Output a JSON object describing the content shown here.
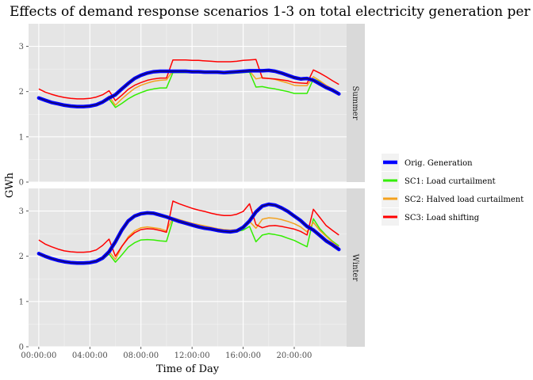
{
  "chart_data": {
    "type": "line",
    "title": "Effects of demand response scenarios 1-3 on total electricity generation per day",
    "xlabel": "Time of Day",
    "ylabel": "GWh",
    "ylim": [
      0,
      3.5
    ],
    "yticks": [
      0,
      1,
      2,
      3
    ],
    "xticks": [
      {
        "hour": 0,
        "label": "00:00:00"
      },
      {
        "hour": 4,
        "label": "04:00:00"
      },
      {
        "hour": 8,
        "label": "08:00:00"
      },
      {
        "hour": 12,
        "label": "12:00:00"
      },
      {
        "hour": 16,
        "label": "16:00:00"
      },
      {
        "hour": 20,
        "label": "20:00:00"
      }
    ],
    "xlim_hours": [
      -0.8,
      24.1
    ],
    "grid": true,
    "legend_position": "right",
    "colors": {
      "orig": "#0000ff",
      "sc1": "#33ee00",
      "sc2": "#f4a11e",
      "sc3": "#ff0000",
      "panel_bg": "#e5e5e5",
      "strip_bg": "#d9d9d9",
      "grid": "#ffffff"
    },
    "legend": [
      {
        "key": "orig",
        "label": "Orig. Generation"
      },
      {
        "key": "sc1",
        "label": "SC1: Load curtailment"
      },
      {
        "key": "sc2",
        "label": "SC2: Halved load curtailment"
      },
      {
        "key": "sc3",
        "label": "SC3: Load shifting"
      }
    ],
    "x_hours": [
      0,
      0.5,
      1,
      1.5,
      2,
      2.5,
      3,
      3.5,
      4,
      4.5,
      5,
      5.5,
      6,
      6.5,
      7,
      7.5,
      8,
      8.5,
      9,
      9.5,
      10,
      10.5,
      11,
      11.5,
      12,
      12.5,
      13,
      13.5,
      14,
      14.5,
      15,
      15.5,
      16,
      16.5,
      17,
      17.5,
      18,
      18.5,
      19,
      19.5,
      20,
      20.5,
      21,
      21.5,
      22,
      22.5,
      23,
      23.5
    ],
    "panels": [
      {
        "name": "Summer",
        "series": [
          {
            "key": "sc1",
            "values": [
              1.84,
              1.79,
              1.74,
              1.71,
              1.68,
              1.66,
              1.65,
              1.65,
              1.66,
              1.69,
              1.75,
              1.84,
              1.65,
              1.74,
              1.84,
              1.92,
              1.98,
              2.03,
              2.06,
              2.08,
              2.08,
              2.42,
              2.42,
              2.42,
              2.42,
              2.42,
              2.41,
              2.41,
              2.41,
              2.4,
              2.4,
              2.41,
              2.42,
              2.43,
              2.1,
              2.11,
              2.08,
              2.06,
              2.03,
              2.0,
              1.96,
              1.96,
              1.96,
              2.28,
              2.22,
              2.12,
              2.05,
              1.96
            ]
          },
          {
            "key": "sc2",
            "values": [
              1.86,
              1.81,
              1.76,
              1.73,
              1.7,
              1.68,
              1.67,
              1.67,
              1.68,
              1.71,
              1.77,
              1.9,
              1.7,
              1.84,
              1.96,
              2.07,
              2.14,
              2.19,
              2.23,
              2.25,
              2.26,
              2.46,
              2.46,
              2.46,
              2.45,
              2.45,
              2.44,
              2.44,
              2.44,
              2.43,
              2.43,
              2.44,
              2.45,
              2.46,
              2.28,
              2.31,
              2.29,
              2.27,
              2.23,
              2.19,
              2.14,
              2.13,
              2.13,
              2.33,
              2.24,
              2.14,
              2.06,
              1.97
            ]
          },
          {
            "key": "sc3",
            "values": [
              2.06,
              1.99,
              1.94,
              1.9,
              1.87,
              1.85,
              1.84,
              1.84,
              1.85,
              1.88,
              1.93,
              2.02,
              1.8,
              1.92,
              2.05,
              2.14,
              2.2,
              2.25,
              2.28,
              2.3,
              2.3,
              2.7,
              2.7,
              2.7,
              2.69,
              2.69,
              2.68,
              2.67,
              2.66,
              2.66,
              2.66,
              2.67,
              2.69,
              2.7,
              2.71,
              2.3,
              2.29,
              2.28,
              2.26,
              2.24,
              2.2,
              2.19,
              2.18,
              2.48,
              2.41,
              2.33,
              2.24,
              2.16
            ]
          },
          {
            "key": "orig",
            "values": [
              1.86,
              1.81,
              1.76,
              1.73,
              1.7,
              1.68,
              1.67,
              1.67,
              1.68,
              1.71,
              1.77,
              1.86,
              1.93,
              2.06,
              2.18,
              2.29,
              2.36,
              2.41,
              2.44,
              2.45,
              2.45,
              2.45,
              2.45,
              2.45,
              2.44,
              2.44,
              2.43,
              2.43,
              2.43,
              2.42,
              2.43,
              2.44,
              2.45,
              2.46,
              2.46,
              2.46,
              2.47,
              2.45,
              2.41,
              2.36,
              2.31,
              2.28,
              2.29,
              2.25,
              2.17,
              2.09,
              2.03,
              1.95
            ]
          }
        ]
      },
      {
        "name": "Winter",
        "series": [
          {
            "key": "sc1",
            "values": [
              2.04,
              1.98,
              1.93,
              1.89,
              1.86,
              1.84,
              1.83,
              1.83,
              1.84,
              1.87,
              1.93,
              2.05,
              1.87,
              2.03,
              2.2,
              2.3,
              2.36,
              2.37,
              2.36,
              2.34,
              2.33,
              2.8,
              2.77,
              2.74,
              2.7,
              2.67,
              2.64,
              2.62,
              2.59,
              2.56,
              2.55,
              2.55,
              2.58,
              2.66,
              2.32,
              2.47,
              2.5,
              2.48,
              2.45,
              2.4,
              2.35,
              2.28,
              2.21,
              2.83,
              2.61,
              2.46,
              2.33,
              2.23
            ]
          },
          {
            "key": "sc2",
            "values": [
              2.06,
              2.0,
              1.95,
              1.91,
              1.88,
              1.86,
              1.85,
              1.85,
              1.86,
              1.89,
              1.96,
              2.11,
              1.93,
              2.21,
              2.43,
              2.56,
              2.63,
              2.65,
              2.63,
              2.61,
              2.56,
              2.85,
              2.81,
              2.77,
              2.73,
              2.7,
              2.67,
              2.64,
              2.61,
              2.59,
              2.58,
              2.59,
              2.65,
              2.77,
              2.62,
              2.82,
              2.85,
              2.84,
              2.81,
              2.77,
              2.72,
              2.65,
              2.54,
              2.75,
              2.57,
              2.44,
              2.31,
              2.2
            ]
          },
          {
            "key": "sc3",
            "values": [
              2.36,
              2.27,
              2.21,
              2.16,
              2.12,
              2.1,
              2.09,
              2.09,
              2.1,
              2.14,
              2.24,
              2.38,
              2.0,
              2.22,
              2.4,
              2.52,
              2.59,
              2.61,
              2.6,
              2.57,
              2.53,
              3.22,
              3.16,
              3.11,
              3.06,
              3.02,
              2.99,
              2.95,
              2.92,
              2.9,
              2.9,
              2.93,
              2.99,
              3.16,
              2.7,
              2.63,
              2.67,
              2.68,
              2.66,
              2.63,
              2.6,
              2.55,
              2.47,
              3.04,
              2.86,
              2.68,
              2.57,
              2.47
            ]
          },
          {
            "key": "orig",
            "values": [
              2.06,
              2.0,
              1.95,
              1.91,
              1.88,
              1.86,
              1.85,
              1.85,
              1.86,
              1.89,
              1.96,
              2.1,
              2.32,
              2.58,
              2.78,
              2.89,
              2.94,
              2.96,
              2.95,
              2.91,
              2.87,
              2.82,
              2.77,
              2.73,
              2.69,
              2.65,
              2.62,
              2.6,
              2.57,
              2.55,
              2.54,
              2.56,
              2.64,
              2.78,
              2.98,
              3.11,
              3.15,
              3.13,
              3.07,
              2.99,
              2.89,
              2.79,
              2.66,
              2.58,
              2.46,
              2.34,
              2.25,
              2.15
            ]
          }
        ]
      }
    ]
  }
}
